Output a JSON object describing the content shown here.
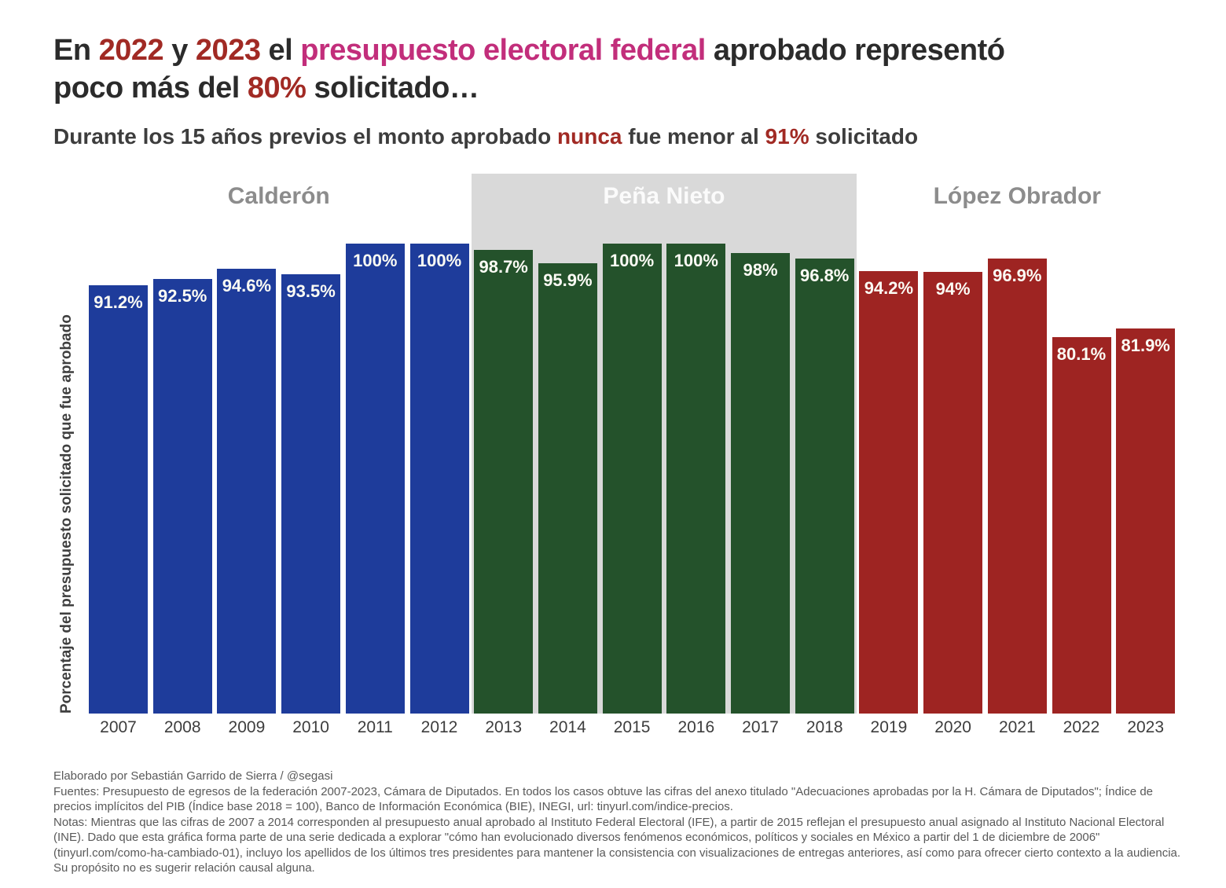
{
  "title": {
    "line1_segments": [
      {
        "text": "En ",
        "style": "d"
      },
      {
        "text": "2022",
        "style": "r"
      },
      {
        "text": " y ",
        "style": "d"
      },
      {
        "text": "2023",
        "style": "r"
      },
      {
        "text": " el ",
        "style": "d"
      },
      {
        "text": "presupuesto electoral federal",
        "style": "p"
      },
      {
        "text": " aprobado representó",
        "style": "d"
      }
    ],
    "line2_segments": [
      {
        "text": "poco más del ",
        "style": "d"
      },
      {
        "text": "80%",
        "style": "r"
      },
      {
        "text": " solicitado…",
        "style": "d"
      }
    ]
  },
  "subtitle": {
    "segments": [
      {
        "text": "Durante los 15 años previos el monto aprobado ",
        "style": "d"
      },
      {
        "text": "nunca",
        "style": "r"
      },
      {
        "text": " fue menor al ",
        "style": "d"
      },
      {
        "text": "91%",
        "style": "r"
      },
      {
        "text": " solicitado",
        "style": "d"
      }
    ]
  },
  "chart_data": {
    "type": "bar",
    "title": "En 2022 y 2023 el presupuesto electoral federal aprobado representó poco más del 80% solicitado…",
    "subtitle": "Durante los 15 años previos el monto aprobado nunca fue menor al 91% solicitado",
    "categories": [
      "2007",
      "2008",
      "2009",
      "2010",
      "2011",
      "2012",
      "2013",
      "2014",
      "2015",
      "2016",
      "2017",
      "2018",
      "2019",
      "2020",
      "2021",
      "2022",
      "2023"
    ],
    "values": [
      91.2,
      92.5,
      94.6,
      93.5,
      100,
      100,
      98.7,
      95.9,
      100,
      100,
      98,
      96.8,
      94.2,
      94,
      96.9,
      80.1,
      81.9
    ],
    "value_labels": [
      "91.2%",
      "92.5%",
      "94.6%",
      "93.5%",
      "100%",
      "100%",
      "98.7%",
      "95.9%",
      "100%",
      "100%",
      "98%",
      "96.8%",
      "94.2%",
      "94%",
      "96.9%",
      "80.1%",
      "81.9%"
    ],
    "xlabel": "",
    "ylabel": "Porcentaje del presupuesto solicitado que fue aprobado",
    "ylim": [
      0,
      100
    ],
    "grid": false,
    "legend": false,
    "sections": [
      {
        "label": "Calderón",
        "start": 0,
        "end": 5,
        "bar_color": "#1e3c9b",
        "label_color": "#8c8c8c",
        "band": false
      },
      {
        "label": "Peña Nieto",
        "start": 6,
        "end": 11,
        "bar_color": "#24522b",
        "label_color": "#fbfbfb",
        "band": true
      },
      {
        "label": "López Obrador",
        "start": 12,
        "end": 16,
        "bar_color": "#9e2422",
        "label_color": "#8c8c8c",
        "band": false
      }
    ]
  },
  "colors": {
    "accent_dark_red": "#a12a24",
    "accent_pink": "#c22e7b",
    "calderon_bar_blue": "#1e3c9b",
    "pena_nieto_bar_green": "#24522b",
    "lopez_obrador_bar_red": "#9e2422",
    "highlight_band_gray": "#d9d9d9",
    "section_label_gray": "#8c8c8c",
    "title_dark": "#2b2b2b",
    "footer_gray": "#595959"
  },
  "footer": {
    "credit": "Elaborado por Sebastián Garrido de Sierra / @segasi",
    "sources": "Fuentes: Presupuesto de egresos de la federación 2007-2023, Cámara de Diputados. En todos los casos obtuve las cifras del anexo titulado \"Adecuaciones aprobadas por la H. Cámara de Diputados\"; Índice de precios implícitos del PIB (Índice base 2018 = 100), Banco de Información Económica (BIE), INEGI, url: tinyurl.com/indice-precios.",
    "notes": "Notas: Mientras que las cifras de 2007 a 2014 corresponden al presupuesto anual aprobado al Instituto Federal Electoral (IFE), a partir de 2015 reflejan el presupuesto anual asignado al Instituto Nacional Electoral (INE). Dado que esta gráfica forma parte de una serie dedicada a explorar \"cómo han evolucionado diversos fenómenos económicos, políticos y sociales en México a partir del 1 de diciembre de 2006\" (tinyurl.com/como-ha-cambiado-01), incluyo los apellidos de los últimos tres presidentes para mantener la consistencia con visualizaciones de entregas anteriores, así como para ofrecer cierto contexto a la audiencia. Su propósito no es sugerir relación causal alguna."
  }
}
